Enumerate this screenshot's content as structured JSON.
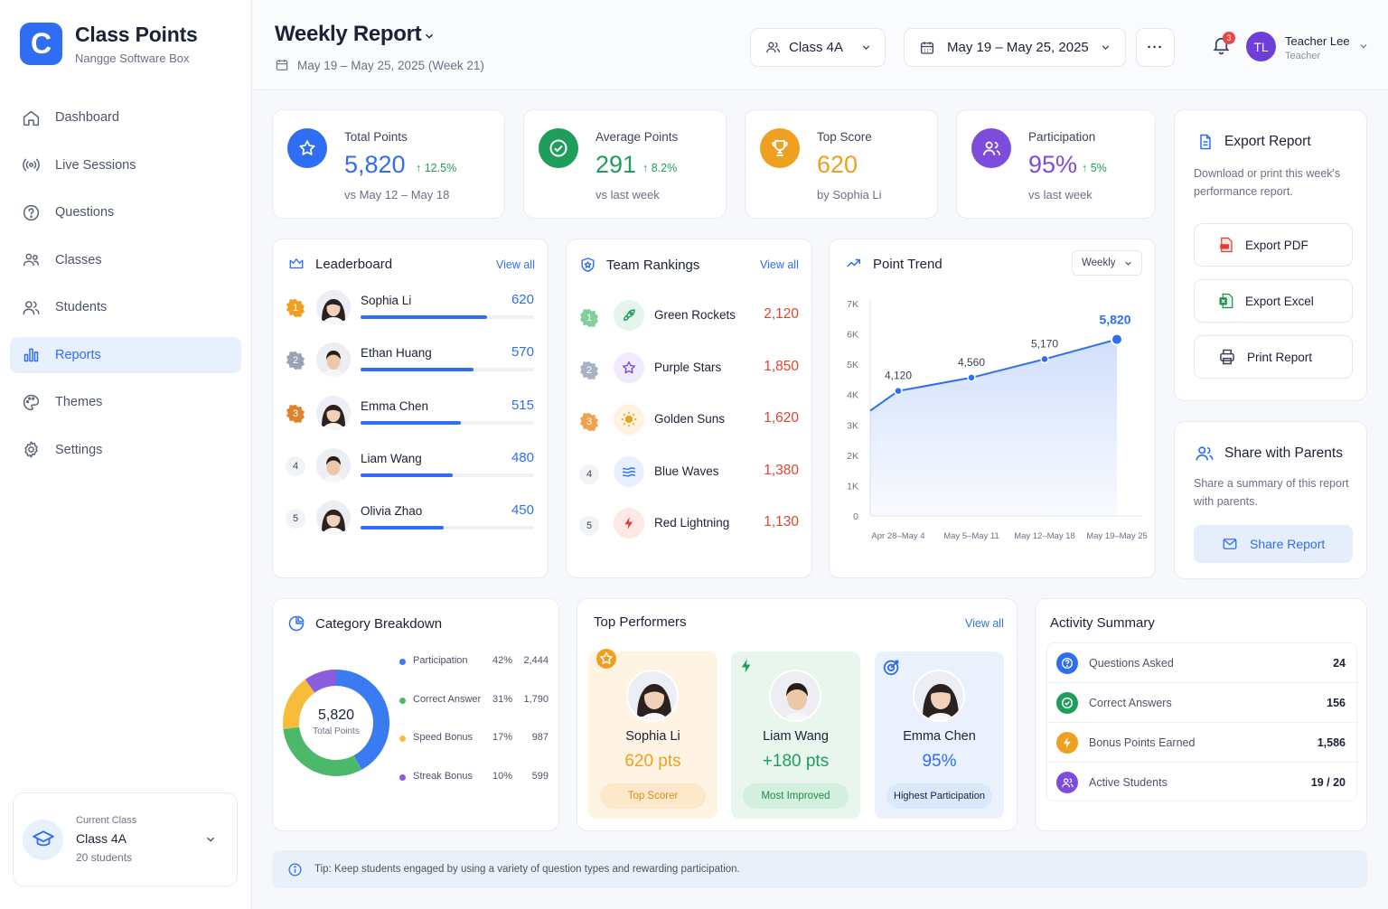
{
  "brand": {
    "logo_letter": "C",
    "name": "Class Points",
    "subtitle": "Nangge Software Box"
  },
  "nav": {
    "items": [
      {
        "label": "Dashboard",
        "icon": "home-icon"
      },
      {
        "label": "Live Sessions",
        "icon": "broadcast-icon"
      },
      {
        "label": "Questions",
        "icon": "question-icon"
      },
      {
        "label": "Classes",
        "icon": "classes-icon"
      },
      {
        "label": "Students",
        "icon": "students-icon"
      },
      {
        "label": "Reports",
        "icon": "bar-chart-icon",
        "active": true
      },
      {
        "label": "Themes",
        "icon": "palette-icon"
      },
      {
        "label": "Settings",
        "icon": "gear-icon"
      }
    ]
  },
  "current_class": {
    "caption": "Current Class",
    "name": "Class 4A",
    "count": "20 students"
  },
  "header": {
    "title": "Weekly Report",
    "subtitle": "May 19 – May 25, 2025 (Week 21)",
    "class_select": "Class 4A",
    "date_range": "May 19 – May 25, 2025",
    "more": "···",
    "notifications": "3",
    "user_initials": "TL",
    "user_name": "Teacher Lee",
    "user_role": "Teacher"
  },
  "kpis": [
    {
      "label": "Total Points",
      "value": "5,820",
      "delta": "12.5%",
      "sub": "vs May 12 – May 18",
      "color": "#2f6ef2"
    },
    {
      "label": "Average Points",
      "value": "291",
      "delta": "8.2%",
      "sub": "vs last week",
      "color": "#1e9e5a"
    },
    {
      "label": "Top Score",
      "value": "620",
      "delta": "",
      "sub": "by Sophia Li",
      "color": "#f0a020"
    },
    {
      "label": "Participation",
      "value": "95%",
      "delta": "5%",
      "sub": "vs last week",
      "color": "#7c4ddb"
    }
  ],
  "export": {
    "title": "Export Report",
    "desc": "Download or print this week's performance report.",
    "pdf": "Export PDF",
    "excel": "Export Excel",
    "print": "Print Report"
  },
  "share": {
    "title": "Share with Parents",
    "desc": "Share a summary of this report with parents.",
    "button": "Share Report"
  },
  "leaderboard": {
    "title": "Leaderboard",
    "view_all": "View all",
    "rows": [
      {
        "rank": "1",
        "name": "Sophia Li",
        "score": "620",
        "fraction": 0.73
      },
      {
        "rank": "2",
        "name": "Ethan Huang",
        "score": "570",
        "fraction": 0.65
      },
      {
        "rank": "3",
        "name": "Emma Chen",
        "score": "515",
        "fraction": 0.58
      },
      {
        "rank": "4",
        "name": "Liam Wang",
        "score": "480",
        "fraction": 0.53
      },
      {
        "rank": "5",
        "name": "Olivia Zhao",
        "score": "450",
        "fraction": 0.48
      }
    ]
  },
  "teams": {
    "title": "Team Rankings",
    "view_all": "View all",
    "rows": [
      {
        "rank": "1",
        "name": "Green Rockets",
        "score": "2,120",
        "icon": "rocket-icon"
      },
      {
        "rank": "2",
        "name": "Purple Stars",
        "score": "1,850",
        "icon": "star-icon"
      },
      {
        "rank": "3",
        "name": "Golden Suns",
        "score": "1,620",
        "icon": "sun-icon"
      },
      {
        "rank": "4",
        "name": "Blue Waves",
        "score": "1,380",
        "icon": "waves-icon"
      },
      {
        "rank": "5",
        "name": "Red Lightning",
        "score": "1,130",
        "icon": "lightning-icon"
      }
    ]
  },
  "trend": {
    "title": "Point Trend",
    "period": "Weekly"
  },
  "chart_data": {
    "type": "area",
    "categories": [
      "Apr 28–May 4",
      "May 5–May 11",
      "May 12–May 18",
      "May 19–May 25"
    ],
    "values": [
      4120,
      4560,
      5170,
      5820
    ],
    "value_labels": [
      "4,120",
      "4,560",
      "5,170",
      "5,820"
    ],
    "y_ticks": [
      "0",
      "1K",
      "2K",
      "3K",
      "4K",
      "5K",
      "6K",
      "7K"
    ],
    "ylim": [
      0,
      7000
    ],
    "grid": false,
    "title": "Point Trend"
  },
  "category": {
    "title": "Category Breakdown",
    "center_value": "5,820",
    "center_label": "Total Points",
    "items": [
      {
        "name": "Participation",
        "pct": "42%",
        "value": "2,444",
        "fraction": 0.42,
        "color": "#3b7bf2"
      },
      {
        "name": "Correct Answer",
        "pct": "31%",
        "value": "1,790",
        "fraction": 0.31,
        "color": "#4cb86a"
      },
      {
        "name": "Speed Bonus",
        "pct": "17%",
        "value": "987",
        "fraction": 0.17,
        "color": "#f6bd3a"
      },
      {
        "name": "Streak Bonus",
        "pct": "10%",
        "value": "599",
        "fraction": 0.1,
        "color": "#8a5ce0"
      }
    ]
  },
  "performers": {
    "title": "Top Performers",
    "view_all": "View all",
    "cards": [
      {
        "name": "Sophia Li",
        "value": "620 pts",
        "tag": "Top Scorer"
      },
      {
        "name": "Liam Wang",
        "value": "+180 pts",
        "tag": "Most Improved"
      },
      {
        "name": "Emma Chen",
        "value": "95%",
        "tag": "Highest Participation"
      }
    ]
  },
  "activity": {
    "title": "Activity Summary",
    "rows": [
      {
        "label": "Questions Asked",
        "value": "24"
      },
      {
        "label": "Correct Answers",
        "value": "156"
      },
      {
        "label": "Bonus Points Earned",
        "value": "1,586"
      },
      {
        "label": "Active Students",
        "value": "19 / 20"
      }
    ]
  },
  "tip": {
    "text": "Tip: Keep students engaged by using a variety of question types and rewarding participation."
  }
}
